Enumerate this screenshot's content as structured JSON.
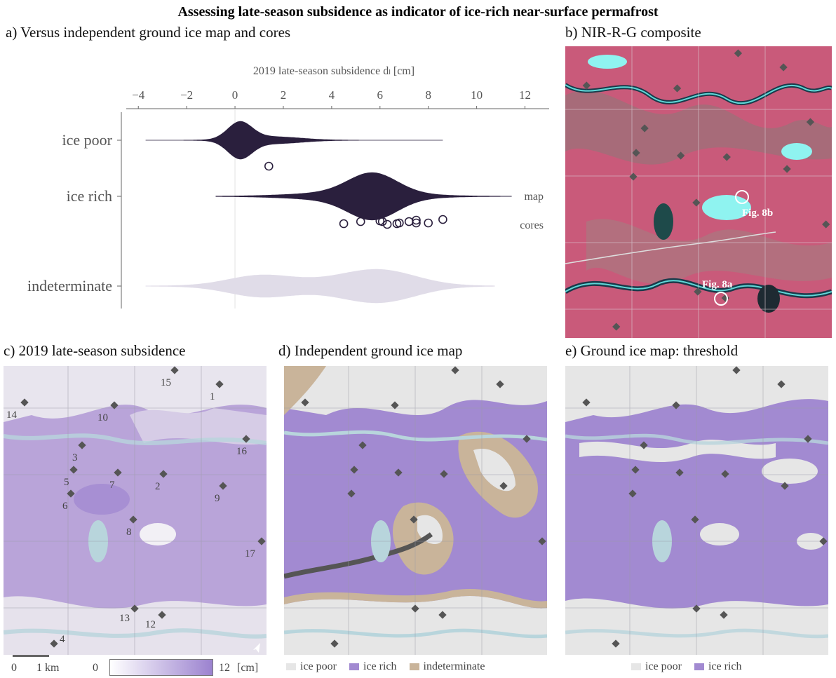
{
  "title": "Assessing late-season subsidence as indicator of ice-rich near-surface permafrost",
  "panels": {
    "a": {
      "title": "a) Versus independent ground ice map and cores"
    },
    "b": {
      "title": "b) NIR-R-G composite",
      "labels": [
        "Fig. 8b",
        "Fig. 8a"
      ]
    },
    "c": {
      "title": "c) 2019 late-season subsidence"
    },
    "d": {
      "title": "d) Independent ground ice map"
    },
    "e": {
      "title": "e) Ground ice map: threshold"
    }
  },
  "site_labels": [
    "15",
    "1",
    "14",
    "10",
    "3",
    "16",
    "5",
    "7",
    "2",
    "9",
    "6",
    "8",
    "17",
    "13",
    "12",
    "4"
  ],
  "scalebar": {
    "start": "0",
    "end": "1 km"
  },
  "colorbar": {
    "min": "0",
    "max": "12",
    "unit": "[cm]"
  },
  "legend_d": [
    "ice poor",
    "ice rich",
    "indeterminate"
  ],
  "legend_e": [
    "ice poor",
    "ice rich"
  ],
  "colors": {
    "dark": "#2a1f3d",
    "ice_rich": "#a28ad1",
    "ice_poor": "#e6e6e6",
    "indeterminate": "#c9b49a",
    "water": "#b9d6dc",
    "light": "#e0dce8"
  },
  "chart_data": {
    "type": "violin",
    "xlabel": "2019 late-season subsidence d_l [cm]",
    "xlim": [
      -4.5,
      13
    ],
    "xticks": [
      -4,
      -2,
      0,
      2,
      4,
      6,
      8,
      10,
      12
    ],
    "categories": [
      "ice poor",
      "ice rich",
      "indeterminate"
    ],
    "annotations": [
      "map",
      "cores"
    ],
    "ice_poor_mode": 0.2,
    "ice_poor_core": [
      1.4
    ],
    "ice_rich_mode": 5.7,
    "ice_rich_cores": [
      4.5,
      5.2,
      6.0,
      6.1,
      6.3,
      6.7,
      6.8,
      7.2,
      7.5,
      7.5,
      8.0,
      8.6
    ],
    "indeterminate_modes": [
      1.0,
      6.0
    ]
  }
}
